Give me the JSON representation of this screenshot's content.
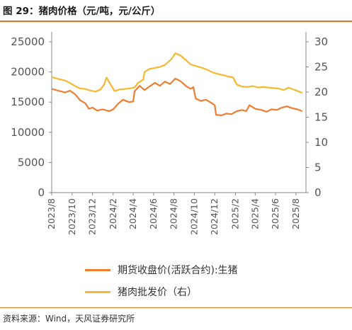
{
  "header": {
    "title": "图 29：猪肉价格（元/吨，元/公斤）"
  },
  "footer": {
    "source": "资料来源：Wind，天风证券研究所"
  },
  "colors": {
    "accent": "#e87722",
    "futures": "#ed7d31",
    "wholesale": "#f5b82e",
    "axis": "#888888"
  },
  "chart_data": {
    "type": "line",
    "x_ticks": [
      "2023/8",
      "2023/10",
      "2023/12",
      "2024/2",
      "2024/4",
      "2024/6",
      "2024/8",
      "2024/10",
      "2024/12",
      "2025/2",
      "2025/4",
      "2025/6",
      "2025/8"
    ],
    "y_left": {
      "ticks": [
        "0",
        "5000",
        "10000",
        "15000",
        "20000",
        "25000"
      ],
      "ylim": [
        0,
        25000
      ]
    },
    "y_right": {
      "ticks": [
        "0",
        "5",
        "10",
        "15",
        "20",
        "25",
        "30"
      ],
      "ylim": [
        0,
        30
      ]
    },
    "legend_placement": "bottom",
    "series": [
      {
        "name": "期货收盘价(活跃合约):生猪",
        "axis": "left",
        "points": [
          [
            "2023-08-01",
            17200
          ],
          [
            "2023-08-20",
            16900
          ],
          [
            "2023-09-10",
            16600
          ],
          [
            "2023-09-25",
            16900
          ],
          [
            "2023-10-10",
            16300
          ],
          [
            "2023-10-25",
            15300
          ],
          [
            "2023-11-10",
            14800
          ],
          [
            "2023-11-20",
            13900
          ],
          [
            "2023-12-01",
            14100
          ],
          [
            "2023-12-15",
            13600
          ],
          [
            "2024-01-01",
            13800
          ],
          [
            "2024-01-20",
            13500
          ],
          [
            "2024-02-01",
            13800
          ],
          [
            "2024-02-15",
            14700
          ],
          [
            "2024-03-01",
            15400
          ],
          [
            "2024-03-20",
            15000
          ],
          [
            "2024-04-01",
            15100
          ],
          [
            "2024-04-05",
            16800
          ],
          [
            "2024-04-20",
            17700
          ],
          [
            "2024-05-05",
            17000
          ],
          [
            "2024-05-20",
            17600
          ],
          [
            "2024-06-05",
            18200
          ],
          [
            "2024-06-20",
            17700
          ],
          [
            "2024-07-05",
            18400
          ],
          [
            "2024-07-20",
            18000
          ],
          [
            "2024-08-05",
            18900
          ],
          [
            "2024-08-20",
            18500
          ],
          [
            "2024-09-05",
            17700
          ],
          [
            "2024-09-20",
            17200
          ],
          [
            "2024-09-28",
            17500
          ],
          [
            "2024-10-05",
            15600
          ],
          [
            "2024-10-20",
            15200
          ],
          [
            "2024-11-05",
            15400
          ],
          [
            "2024-11-20",
            14900
          ],
          [
            "2024-12-01",
            14500
          ],
          [
            "2024-12-05",
            12900
          ],
          [
            "2024-12-20",
            12800
          ],
          [
            "2025-01-05",
            13100
          ],
          [
            "2025-01-20",
            13000
          ],
          [
            "2025-02-05",
            13500
          ],
          [
            "2025-02-20",
            13700
          ],
          [
            "2025-03-05",
            13500
          ],
          [
            "2025-03-15",
            14500
          ],
          [
            "2025-04-01",
            13900
          ],
          [
            "2025-04-20",
            13700
          ],
          [
            "2025-05-05",
            13400
          ],
          [
            "2025-05-20",
            13800
          ],
          [
            "2025-06-05",
            13700
          ],
          [
            "2025-06-20",
            14100
          ],
          [
            "2025-07-05",
            14300
          ],
          [
            "2025-07-20",
            14000
          ],
          [
            "2025-08-05",
            13800
          ],
          [
            "2025-08-20",
            13500
          ]
        ]
      },
      {
        "name": "猪肉批发价（右）",
        "axis": "right",
        "points": [
          [
            "2023-08-01",
            23.0
          ],
          [
            "2023-08-20",
            22.6
          ],
          [
            "2023-09-10",
            22.3
          ],
          [
            "2023-09-25",
            21.8
          ],
          [
            "2023-10-10",
            21.2
          ],
          [
            "2023-10-25",
            20.7
          ],
          [
            "2023-11-10",
            20.6
          ],
          [
            "2023-11-25",
            20.3
          ],
          [
            "2023-12-10",
            20.1
          ],
          [
            "2023-12-25",
            20.5
          ],
          [
            "2024-01-05",
            21.5
          ],
          [
            "2024-01-12",
            22.9
          ],
          [
            "2024-01-20",
            22.0
          ],
          [
            "2024-02-05",
            20.2
          ],
          [
            "2024-02-20",
            20.5
          ],
          [
            "2024-03-05",
            20.6
          ],
          [
            "2024-03-20",
            20.7
          ],
          [
            "2024-04-05",
            20.9
          ],
          [
            "2024-04-15",
            21.8
          ],
          [
            "2024-05-01",
            22.5
          ],
          [
            "2024-05-05",
            24.0
          ],
          [
            "2024-05-20",
            24.6
          ],
          [
            "2024-06-05",
            24.8
          ],
          [
            "2024-06-20",
            25.0
          ],
          [
            "2024-07-05",
            25.4
          ],
          [
            "2024-07-25",
            26.6
          ],
          [
            "2024-08-05",
            27.7
          ],
          [
            "2024-08-20",
            27.3
          ],
          [
            "2024-09-05",
            26.4
          ],
          [
            "2024-09-20",
            25.5
          ],
          [
            "2024-10-10",
            25.1
          ],
          [
            "2024-10-25",
            24.8
          ],
          [
            "2024-11-10",
            24.4
          ],
          [
            "2024-11-25",
            23.9
          ],
          [
            "2024-12-10",
            23.6
          ],
          [
            "2024-12-25",
            23.4
          ],
          [
            "2025-01-10",
            23.1
          ],
          [
            "2025-01-25",
            22.9
          ],
          [
            "2025-02-05",
            21.5
          ],
          [
            "2025-02-20",
            21.1
          ],
          [
            "2025-03-10",
            21.0
          ],
          [
            "2025-03-25",
            21.2
          ],
          [
            "2025-04-10",
            20.9
          ],
          [
            "2025-04-25",
            21.0
          ],
          [
            "2025-05-10",
            20.9
          ],
          [
            "2025-05-25",
            20.8
          ],
          [
            "2025-06-10",
            20.7
          ],
          [
            "2025-06-25",
            20.4
          ],
          [
            "2025-07-10",
            20.9
          ],
          [
            "2025-07-25",
            20.5
          ],
          [
            "2025-08-10",
            20.1
          ],
          [
            "2025-08-20",
            19.8
          ]
        ]
      }
    ]
  }
}
